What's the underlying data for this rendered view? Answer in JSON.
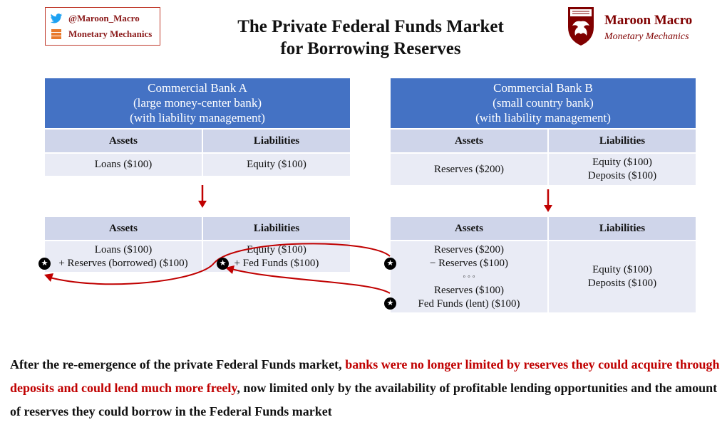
{
  "brand": {
    "handle": "@Maroon_Macro",
    "blog": "Monetary Mechanics",
    "logo_name": "Maroon Macro",
    "logo_sub": "Monetary Mechanics",
    "icons": [
      "twitter-bird-icon",
      "blog-rss-icon",
      "phoenix-shield-icon"
    ]
  },
  "title": {
    "line1": "The Private Federal Funds Market",
    "line2": "for Borrowing Reserves"
  },
  "bank_a": {
    "header": [
      "Commercial Bank A",
      "(large money-center bank)",
      "(with liability management)"
    ],
    "before": {
      "assets_h": "Assets",
      "liab_h": "Liabilities",
      "assets": [
        "Loans ($100)"
      ],
      "liab": [
        "Equity ($100)"
      ]
    },
    "after": {
      "assets_h": "Assets",
      "liab_h": "Liabilities",
      "assets": [
        "Loans ($100)",
        "+ Reserves (borrowed) ($100)"
      ],
      "liab": [
        "Equity ($100)",
        "+ Fed Funds ($100)"
      ]
    }
  },
  "bank_b": {
    "header": [
      "Commercial Bank B",
      "(small country bank)",
      "(with liability management)"
    ],
    "before": {
      "assets_h": "Assets",
      "liab_h": "Liabilities",
      "assets": [
        "Reserves ($200)"
      ],
      "liab": [
        "Equity ($100)",
        "Deposits ($100)"
      ]
    },
    "after": {
      "assets_h": "Assets",
      "liab_h": "Liabilities",
      "assets": [
        "Reserves ($200)",
        "− Reserves ($100)",
        "◦ ◦ ◦",
        "Reserves ($100)",
        "Fed Funds (lent) ($100)"
      ],
      "liab": [
        "Equity ($100)",
        "Deposits ($100)"
      ]
    }
  },
  "caption": {
    "part1": "After the re-emergence of the private Federal Funds market, ",
    "part2": "banks were no longer limited by reserves they could acquire through deposits and could lend much more freely",
    "part3": ", now limited only by the availability of profitable lending opportunities and the amount of reserves they could borrow in the Federal Funds market"
  },
  "colors": {
    "header_blue": "#4472c4",
    "row_header": "#cfd5ea",
    "row_body": "#e9ebf5",
    "accent_red": "#c00000",
    "maroon": "#800000"
  }
}
